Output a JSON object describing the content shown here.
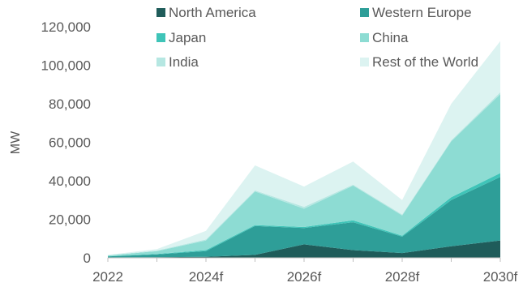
{
  "chart_data": {
    "type": "area",
    "stacked": true,
    "ylabel": "MW",
    "ylim": [
      0,
      120000
    ],
    "yticks": [
      0,
      20000,
      40000,
      60000,
      80000,
      100000,
      120000
    ],
    "ytick_labels": [
      "0",
      "20,000",
      "40,000",
      "60,000",
      "80,000",
      "100,000",
      "120,000"
    ],
    "x": [
      2022,
      2023,
      2024,
      2025,
      2026,
      2027,
      2028,
      2029,
      2030
    ],
    "xtick_labels": [
      {
        "x": 2022,
        "label": "2022"
      },
      {
        "x": 2024,
        "label": "2024f"
      },
      {
        "x": 2026,
        "label": "2026f"
      },
      {
        "x": 2028,
        "label": "2028f"
      },
      {
        "x": 2030,
        "label": "2030f"
      }
    ],
    "legend_position": "top",
    "series": [
      {
        "name": "North America",
        "color": "#1f5c5a",
        "values": [
          200,
          300,
          500,
          1500,
          7000,
          4000,
          2500,
          6000,
          9000
        ]
      },
      {
        "name": "Western Europe",
        "color": "#2e9e98",
        "values": [
          500,
          1500,
          3000,
          15000,
          8500,
          14500,
          8500,
          24000,
          33000
        ]
      },
      {
        "name": "Japan",
        "color": "#3fc4b8",
        "values": [
          100,
          200,
          500,
          500,
          500,
          1000,
          500,
          1500,
          2000
        ]
      },
      {
        "name": "China",
        "color": "#8ddcd3",
        "values": [
          400,
          1500,
          5000,
          17500,
          9500,
          18000,
          10500,
          29000,
          41000
        ]
      },
      {
        "name": "India",
        "color": "#b6e7e2",
        "values": [
          100,
          300,
          500,
          500,
          1000,
          500,
          500,
          500,
          1000
        ]
      },
      {
        "name": "Rest of the World",
        "color": "#dcf3f1",
        "values": [
          200,
          700,
          4500,
          13000,
          10500,
          12000,
          7500,
          19000,
          26500
        ]
      }
    ]
  }
}
